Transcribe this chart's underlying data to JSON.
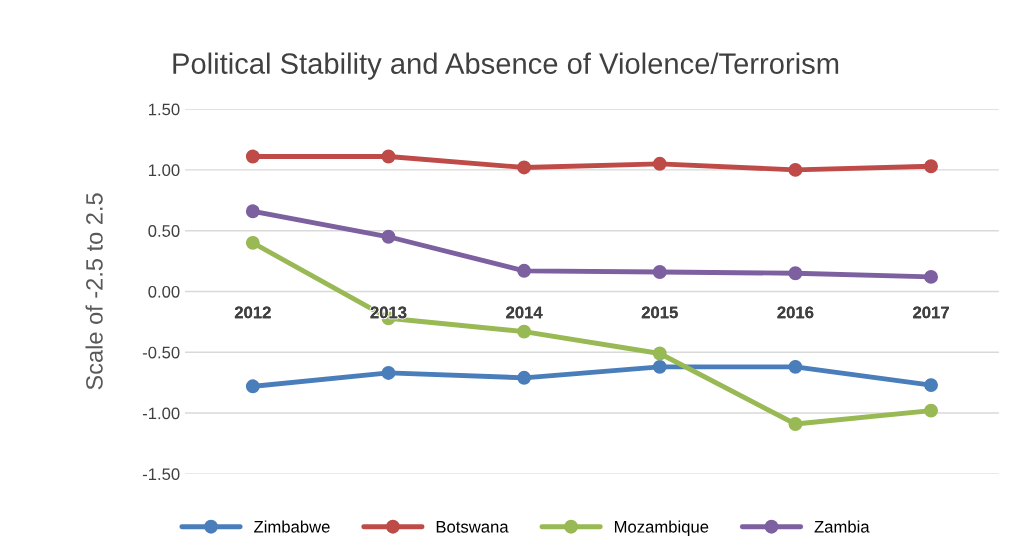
{
  "chart_data": {
    "type": "line",
    "title": "Political Stability and Absence of Violence/Terrorism",
    "ylabel": "Scale of -2.5 to 2.5",
    "categories": [
      "2012",
      "2013",
      "2014",
      "2015",
      "2016",
      "2017"
    ],
    "series": [
      {
        "name": "Zimbabwe",
        "color": "#4a7ebb",
        "values": [
          -0.78,
          -0.67,
          -0.71,
          -0.62,
          -0.62,
          -0.77
        ]
      },
      {
        "name": "Botswana",
        "color": "#be4b48",
        "values": [
          1.11,
          1.11,
          1.02,
          1.05,
          1.0,
          1.03
        ]
      },
      {
        "name": "Mozambique",
        "color": "#98b954",
        "values": [
          0.4,
          -0.22,
          -0.33,
          -0.51,
          -1.09,
          -0.98
        ]
      },
      {
        "name": "Zambia",
        "color": "#7d60a0",
        "values": [
          0.66,
          0.45,
          0.17,
          0.16,
          0.15,
          0.12
        ]
      }
    ],
    "ylim": [
      -1.5,
      1.5
    ],
    "yticks": [
      {
        "value": -1.5,
        "label": "-1.50"
      },
      {
        "value": -1.0,
        "label": "-1.00"
      },
      {
        "value": -0.5,
        "label": "-0.50"
      },
      {
        "value": 0,
        "label": "0.00"
      },
      {
        "value": 0.5,
        "label": "0.50"
      },
      {
        "value": 1.0,
        "label": "1.00"
      },
      {
        "value": 1.5,
        "label": "1.50"
      }
    ],
    "grid": "y",
    "legend": "bottom",
    "marker": "circle",
    "line_style": "solid"
  }
}
